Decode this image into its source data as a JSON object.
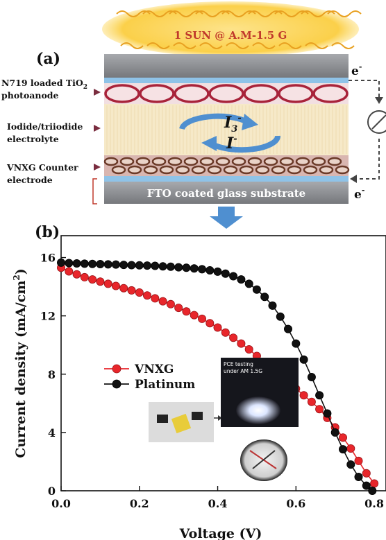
{
  "panel_a": {
    "label": "(a)",
    "sun_label": "1 SUN @ A.M-1.5 G",
    "layer_labels": {
      "photoanode_line1": "N719 loaded TiO",
      "photoanode_sub": "2",
      "photoanode_line2": "photoanode",
      "electrolyte_line1": "Iodide/triiodide",
      "electrolyte_line2": "electrolyte",
      "counter_line1": "VNXG Counter",
      "counter_line2": "electrode"
    },
    "substrate_label": "FTO coated glass substrate",
    "ion_top": "I",
    "ion_top_sub": "3",
    "ion_top_sup": "-",
    "ion_bottom": "I",
    "ion_bottom_sup": "-",
    "electron_top": "e",
    "electron_bottom": "e",
    "electron_sup": "-",
    "colors": {
      "sun_glow": "#fbd04a",
      "sun_text": "#c0392b",
      "glass": "#8e9094",
      "fto": "#8fc3e8",
      "dye": "#a8233a",
      "electrolyte": "#f6e9c8",
      "cycle_arrow": "#4f8fd0",
      "vnxg": "#7a4a35"
    }
  },
  "chart_data": {
    "type": "line",
    "panel_label": "(b)",
    "xlabel": "Voltage (V)",
    "ylabel": "Current density (mA/cm²)",
    "ylabel_parts": {
      "main": "Current density (mA/cm",
      "sup": "2",
      "end": ")"
    },
    "xlim": [
      0.0,
      0.83
    ],
    "ylim": [
      0,
      17.5
    ],
    "x_ticks": [
      0.0,
      0.2,
      0.4,
      0.6,
      0.8
    ],
    "x_tick_labels": [
      "0.0",
      "0.2",
      "0.4",
      "0.6",
      "0.8"
    ],
    "y_ticks": [
      0,
      4,
      8,
      12,
      16
    ],
    "y_tick_labels": [
      "0",
      "4",
      "8",
      "12",
      "16"
    ],
    "grid": false,
    "legend_position": "center-left",
    "series": [
      {
        "name": "VNXG",
        "color": "#e8262b",
        "x": [
          0.0,
          0.02,
          0.04,
          0.06,
          0.08,
          0.1,
          0.12,
          0.14,
          0.16,
          0.18,
          0.2,
          0.22,
          0.24,
          0.26,
          0.28,
          0.3,
          0.32,
          0.34,
          0.36,
          0.38,
          0.4,
          0.42,
          0.44,
          0.46,
          0.48,
          0.5,
          0.52,
          0.54,
          0.56,
          0.58,
          0.6,
          0.62,
          0.64,
          0.66,
          0.68,
          0.7,
          0.72,
          0.74,
          0.76,
          0.78,
          0.8
        ],
        "y": [
          15.3,
          15.05,
          14.85,
          14.65,
          14.5,
          14.35,
          14.2,
          14.05,
          13.9,
          13.75,
          13.6,
          13.4,
          13.2,
          13.0,
          12.8,
          12.55,
          12.3,
          12.05,
          11.8,
          11.5,
          11.2,
          10.85,
          10.5,
          10.1,
          9.7,
          9.25,
          8.8,
          8.35,
          7.9,
          7.45,
          7.0,
          6.55,
          6.1,
          5.6,
          5.0,
          4.35,
          3.65,
          2.9,
          2.05,
          1.2,
          0.5
        ]
      },
      {
        "name": "Platinum",
        "color": "#111111",
        "x": [
          0.0,
          0.02,
          0.04,
          0.06,
          0.08,
          0.1,
          0.12,
          0.14,
          0.16,
          0.18,
          0.2,
          0.22,
          0.24,
          0.26,
          0.28,
          0.3,
          0.32,
          0.34,
          0.36,
          0.38,
          0.4,
          0.42,
          0.44,
          0.46,
          0.48,
          0.5,
          0.52,
          0.54,
          0.56,
          0.58,
          0.6,
          0.62,
          0.64,
          0.66,
          0.68,
          0.7,
          0.72,
          0.74,
          0.76,
          0.78,
          0.795
        ],
        "y": [
          15.65,
          15.62,
          15.6,
          15.58,
          15.56,
          15.55,
          15.53,
          15.52,
          15.5,
          15.48,
          15.47,
          15.45,
          15.43,
          15.4,
          15.37,
          15.33,
          15.3,
          15.25,
          15.2,
          15.12,
          15.03,
          14.9,
          14.72,
          14.5,
          14.2,
          13.8,
          13.3,
          12.7,
          11.95,
          11.1,
          10.1,
          9.0,
          7.8,
          6.55,
          5.3,
          4.0,
          2.85,
          1.8,
          0.95,
          0.35,
          0.0
        ]
      }
    ],
    "inset": {
      "caption_line1": "PCE testing",
      "caption_line2": "under AM 1.5G"
    }
  }
}
